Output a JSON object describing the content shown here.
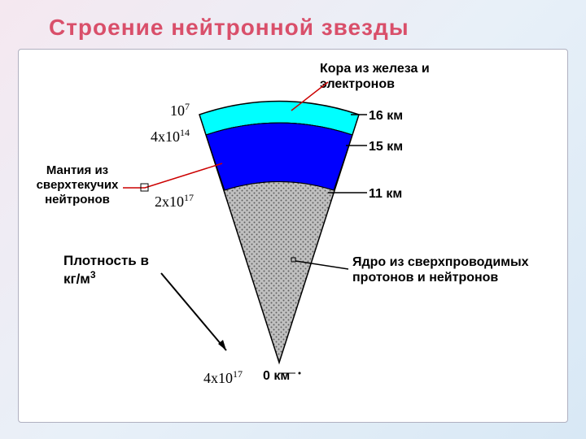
{
  "title": "Строение нейтронной звезды",
  "panel": {
    "bg": "#ffffff",
    "border": "#b0b0c0"
  },
  "layers": {
    "crust": {
      "label": "Кора из железа и электронов",
      "radius_label": "16 км",
      "color": "#00ffff",
      "density_html": "10<span class='sup'>7</span>"
    },
    "mantle_top": {
      "radius_label": "15 км",
      "color": "#0000ff",
      "density_html": "4x10<span class='sup'>14</span>"
    },
    "mantle": {
      "label": "Мантия из сверхтекучих нейтронов",
      "radius_label": "11 км",
      "density_html": "2x10<span class='sup'>17</span>"
    },
    "core": {
      "label": "Ядро из сверхпроводимых протонов и нейтронов",
      "radius_label": "0 км",
      "density_html": "4x10<span class='sup'>17</span>",
      "pattern_bg": "#c0c0c0",
      "pattern_dot": "#606060"
    }
  },
  "density_axis_label_html": "Плотность в кг/м<span class='sup'>3</span>",
  "colors": {
    "title": "#d94f6a",
    "text": "#000000",
    "line": "#000000",
    "leader_red": "#cc0000"
  }
}
